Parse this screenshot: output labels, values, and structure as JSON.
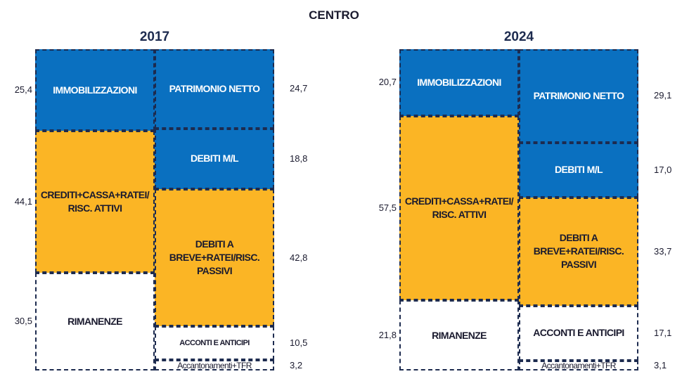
{
  "title": "CENTRO",
  "chart_data": [
    {
      "type": "stacked-bar",
      "title": "2017",
      "columns": [
        {
          "series": [
            {
              "name": "IMMOBILIZZAZIONI",
              "color": "#0a70c0",
              "values": [
                25.4
              ],
              "value_labels": [
                "25,4"
              ]
            },
            {
              "name": "CREDITI+CASSA+RATEI/RISC. ATTIVI",
              "color": "#fbb525",
              "values": [
                44.1
              ],
              "value_labels": [
                "44,1"
              ]
            },
            {
              "name": "RIMANENZE",
              "color": "#ffffff",
              "values": [
                30.5
              ],
              "value_labels": [
                "30,5"
              ]
            }
          ]
        },
        {
          "series": [
            {
              "name": "PATRIMONIO NETTO",
              "color": "#0a70c0",
              "values": [
                24.7
              ],
              "value_labels": [
                "24,7"
              ]
            },
            {
              "name": "DEBITI M/L",
              "color": "#0a70c0",
              "values": [
                18.8
              ],
              "value_labels": [
                "18,8"
              ]
            },
            {
              "name": "DEBITI A BREVE+RATEI/RISC. PASSIVI",
              "color": "#fbb525",
              "values": [
                42.8
              ],
              "value_labels": [
                "42,8"
              ]
            },
            {
              "name": "ACCONTI E ANTICIPI",
              "color": "#ffffff",
              "values": [
                10.5
              ],
              "value_labels": [
                "10,5"
              ]
            },
            {
              "name": "Accantonamenti+TFR",
              "color": "#ffffff",
              "values": [
                3.2
              ],
              "value_labels": [
                "3,2"
              ]
            }
          ]
        }
      ]
    },
    {
      "type": "stacked-bar",
      "title": "2024",
      "columns": [
        {
          "series": [
            {
              "name": "IMMOBILIZZAZIONI",
              "color": "#0a70c0",
              "values": [
                20.7
              ],
              "value_labels": [
                "20,7"
              ]
            },
            {
              "name": "CREDITI+CASSA+RATEI/RISC. ATTIVI",
              "color": "#fbb525",
              "values": [
                57.5
              ],
              "value_labels": [
                "57,5"
              ]
            },
            {
              "name": "RIMANENZE",
              "color": "#ffffff",
              "values": [
                21.8
              ],
              "value_labels": [
                "21,8"
              ]
            }
          ]
        },
        {
          "series": [
            {
              "name": "PATRIMONIO NETTO",
              "color": "#0a70c0",
              "values": [
                29.1
              ],
              "value_labels": [
                "29,1"
              ]
            },
            {
              "name": "DEBITI M/L",
              "color": "#0a70c0",
              "values": [
                17.0
              ],
              "value_labels": [
                "17,0"
              ]
            },
            {
              "name": "DEBITI A BREVE+RATEI/RISC. PASSIVI",
              "color": "#fbb525",
              "values": [
                33.7
              ],
              "value_labels": [
                "33,7"
              ]
            },
            {
              "name": "ACCONTI E ANTICIPI",
              "color": "#ffffff",
              "values": [
                17.1
              ],
              "value_labels": [
                "17,1"
              ]
            },
            {
              "name": "Accantonamenti+TFR",
              "color": "#ffffff",
              "values": [
                3.1
              ],
              "value_labels": [
                "3,1"
              ]
            }
          ]
        }
      ]
    }
  ]
}
